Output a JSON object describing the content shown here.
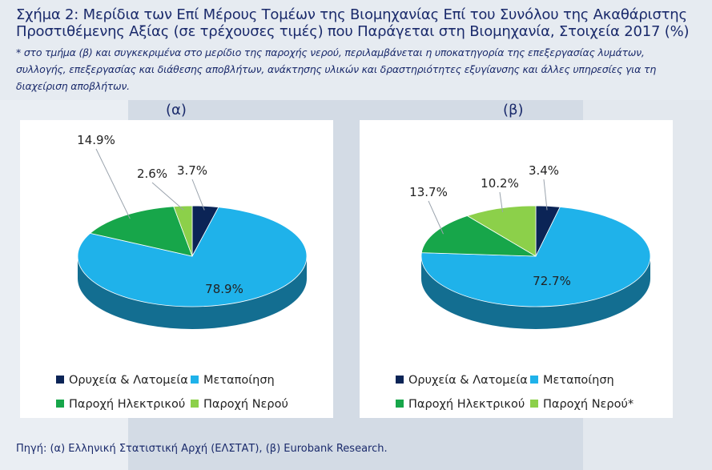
{
  "title": "Σχήμα 2: Μερίδια των Επί Μέρους Τομέων της Βιομηχανίας Επί του Συνόλου της Ακαθάριστης Προστιθέμενης Αξίας (σε τρέχουσες τιμές) που Παράγεται στη Βιομηχανία, Στοιχεία 2017 (%)",
  "note": "* στο τμήμα (β) και συγκεκριμένα στο μερίδιο της παροχής νερού, περιλαμβάνεται η υποκατηγορία της επεξεργασίας λυμάτων, συλλογής, επεξεργασίας και διάθεσης αποβλήτων, ανάκτησης υλικών και δραστηριότητες εξυγίανσης και άλλες υπηρεσίες για τη διαχείριση αποβλήτων.",
  "source": "Πηγή: (α) Ελληνική Στατιστική Αρχή (ΕΛΣΤΑΤ), (β) Eurobank Research.",
  "colors": {
    "mining": "#0b2456",
    "manufacturing": "#1fb2ea",
    "electricity": "#17a64a",
    "water": "#8cd04a"
  },
  "chart_data": [
    {
      "type": "pie",
      "panel_label": "(α)",
      "slices": [
        {
          "label": "Ορυχεία & Λατομεία",
          "value": 3.7,
          "value_label": "3.7%"
        },
        {
          "label": "Μεταποίηση",
          "value": 78.9,
          "value_label": "78.9%"
        },
        {
          "label": "Παροχή Ηλεκτρικού",
          "value": 14.9,
          "value_label": "14.9%"
        },
        {
          "label": "Παροχή Νερού",
          "value": 2.6,
          "value_label": "2.6%"
        }
      ],
      "legend": [
        "Ορυχεία & Λατομεία",
        "Μεταποίηση",
        "Παροχή Ηλεκτρικού",
        "Παροχή Νερού"
      ]
    },
    {
      "type": "pie",
      "panel_label": "(β)",
      "slices": [
        {
          "label": "Ορυχεία & Λατομεία",
          "value": 3.4,
          "value_label": "3.4%"
        },
        {
          "label": "Μεταποίηση",
          "value": 72.7,
          "value_label": "72.7%"
        },
        {
          "label": "Παροχή Ηλεκτρικού",
          "value": 13.7,
          "value_label": "13.7%"
        },
        {
          "label": "Παροχή Νερού*",
          "value": 10.2,
          "value_label": "10.2%"
        }
      ],
      "legend": [
        "Ορυχεία & Λατομεία",
        "Μεταποίηση",
        "Παροχή Ηλεκτρικού",
        "Παροχή Νερού*"
      ]
    }
  ]
}
